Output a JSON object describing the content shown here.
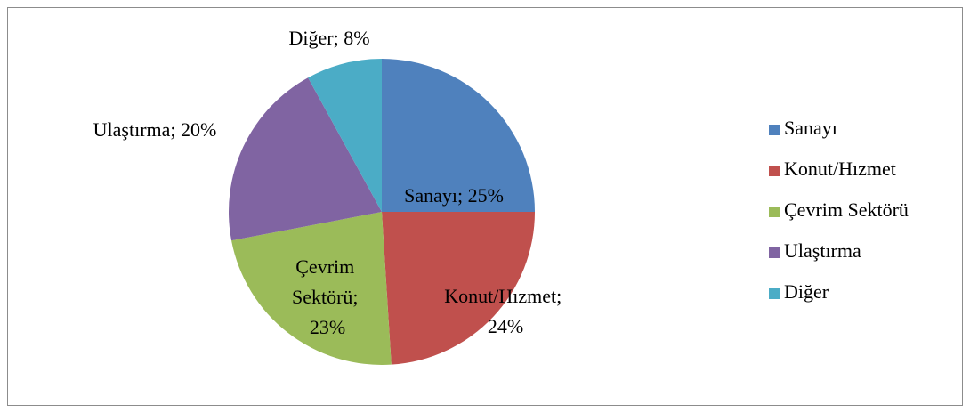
{
  "chart_data": {
    "type": "pie",
    "categories": [
      "Sanayı",
      "Konut/Hızmet",
      "Çevrim Sektörü",
      "Ulaştırma",
      "Diğer"
    ],
    "values": [
      25,
      24,
      23,
      20,
      8
    ],
    "value_labels": [
      "Sanayı; 25%",
      "Konut/Hızmet; 24%",
      "Çevrim Sektörü; 23%",
      "Ulaştırma; 20%",
      "Diğer; 8%"
    ],
    "colors": [
      "#4f81bd",
      "#c0504d",
      "#9bbb59",
      "#8064a2",
      "#4bacc6"
    ],
    "legend": "right"
  }
}
